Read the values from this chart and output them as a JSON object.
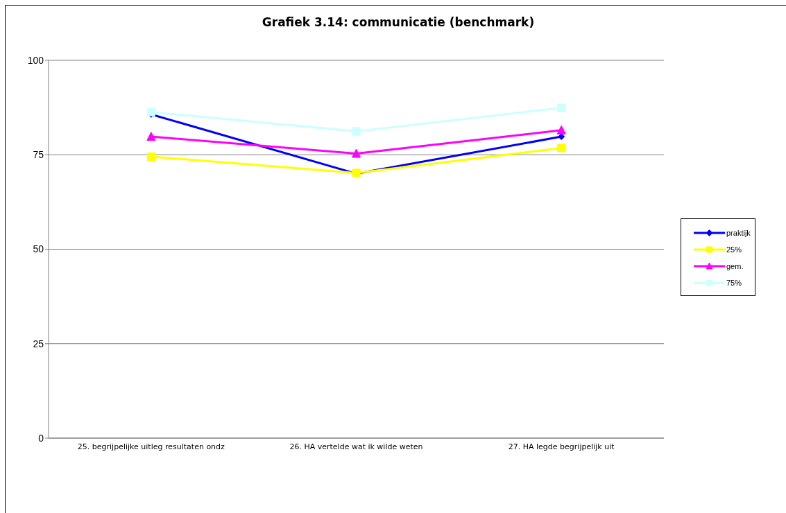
{
  "chart_data": {
    "type": "line",
    "title": "Grafiek 3.14: communicatie (benchmark)",
    "categories": [
      "25. begrijpelijke uitleg resultaten ondz",
      "26. HA vertelde wat ik wilde weten",
      "27. HA legde begrijpelijk uit"
    ],
    "series": [
      {
        "name": "praktijk",
        "color": "#0000ff",
        "marker": "diamond",
        "values": [
          85.7,
          70,
          79.8
        ]
      },
      {
        "name": "25%",
        "color": "#ffff00",
        "marker": "square",
        "values": [
          74.5,
          70.2,
          76.8
        ]
      },
      {
        "name": "gem.",
        "color": "#ff00ff",
        "marker": "triangle",
        "values": [
          79.8,
          75.3,
          81.5
        ]
      },
      {
        "name": "75%",
        "color": "#ccffff",
        "marker": "square",
        "values": [
          86.3,
          81.2,
          87.4
        ]
      }
    ],
    "ylim": [
      0,
      100
    ],
    "yticks": [
      0,
      25,
      50,
      75,
      100
    ],
    "grid": "y",
    "legend": "right"
  }
}
